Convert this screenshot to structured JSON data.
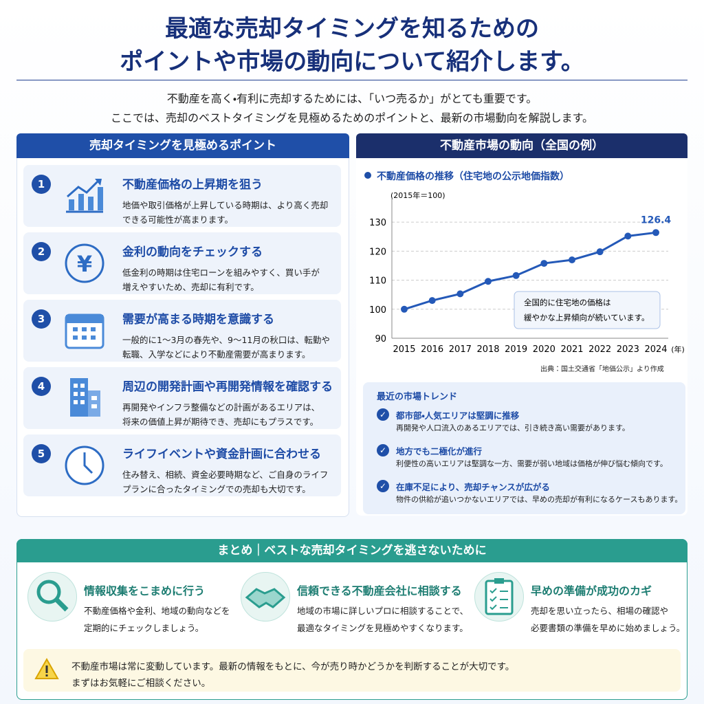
{
  "header": {
    "title": [
      "最適な売却タイミングを知るための",
      "ポイントや市場の動向について紹介します。"
    ],
    "intro": [
      "不動産を高く・有利に売却するためには、「いつ売るか」がとても重要です。",
      "ここでは、売却のベストタイミングを見極めるためのポイントと、最新の市場動向を解説します。"
    ]
  },
  "points": {
    "heading": "売却タイミングを見極めるポイント",
    "items": [
      {
        "number": "1",
        "title": "不動産価格の上昇期を狙う",
        "text": [
          "地価や取引価格が上昇している時期は、より高く売却",
          "できる可能性が高まります。"
        ]
      },
      {
        "number": "2",
        "title": "金利の動向をチェックする",
        "text": [
          "低金利の時期は住宅ローンを組みやすく、買い手が",
          "増えやすいため、売却に有利です。"
        ]
      },
      {
        "number": "3",
        "title": "需要が高まる時期を意識する",
        "text": [
          "一般的に1〜3月の春先や、9〜11月の秋口は、転勤や",
          "転職、入学などにより不動産需要が高まります。"
        ]
      },
      {
        "number": "4",
        "title": "周辺の開発計画や再開発情報を確認する",
        "text": [
          "再開発やインフラ整備などの計画があるエリアは、",
          "将来の価値上昇が期待でき、売却にもプラスです。"
        ]
      },
      {
        "number": "5",
        "title": "ライフイベントや資金計画に合わせる",
        "text": [
          "住み替え、相続、資金必要時期など、ご自身のライフ",
          "プランに合ったタイミングでの売却も大切です。"
        ]
      }
    ]
  },
  "market": {
    "heading": "不動産市場の動向（全国の例）",
    "source": "出典：国土交通省「地価公示」より作成",
    "trends": {
      "title": "最近の市場トレンド",
      "items": [
        {
          "title": "都市部・人気エリアは堅調に推移",
          "text": "再開発や人口流入のあるエリアでは、引き続き高い需要があります。"
        },
        {
          "title": "地方でも二極化が進行",
          "text": "利便性の高いエリアは堅調な一方、需要が弱い地域は価格が伸び悩む傾向です。"
        },
        {
          "title": "在庫不足により、売却チャンスが広がる",
          "text": "物件の供給が追いつかないエリアでは、早めの売却が有利になるケースもあります。"
        }
      ]
    }
  },
  "chart_data": {
    "type": "line",
    "title": "不動産価格の推移（住宅地の公示地価指数）",
    "y_label": "(2015年＝100)",
    "x_label": "(年)",
    "categories": [
      "2015",
      "2016",
      "2017",
      "2018",
      "2019",
      "2020",
      "2021",
      "2022",
      "2023",
      "2024"
    ],
    "series": [
      {
        "name": "公示地価指数",
        "color": "#2459b8",
        "values": [
          100,
          103,
          105.3,
          109.6,
          111.6,
          115.8,
          117,
          119.8,
          125.2,
          126.4
        ]
      }
    ],
    "ylim": [
      90,
      135
    ],
    "yticks": [
      90,
      100,
      110,
      120,
      130
    ],
    "grid": true,
    "annotation": [
      "全国的に住宅地の価格は",
      "緩やかな上昇傾向が続いています。"
    ]
  },
  "summary": {
    "heading": "まとめ｜ベストな売却タイミングを逃さないために",
    "items": [
      {
        "title": "情報収集をこまめに行う",
        "text": [
          "不動産価格や金利、地域の動向などを",
          "定期的にチェックしましょう。"
        ]
      },
      {
        "title": "信頼できる不動産会社に相談する",
        "text": [
          "地域の市場に詳しいプロに相談することで、",
          "最適なタイミングを見極めやすくなります。"
        ]
      },
      {
        "title": "早めの準備が成功のカギ",
        "text": [
          "売却を思い立ったら、相場の確認や",
          "必要書類の準備を早めに始めましょう。"
        ]
      }
    ],
    "note": [
      "不動産市場は常に変動しています。最新の情報をもとに、今が売り時かどうかを判断することが大切です。",
      "まずはお気軽にご相談ください。"
    ]
  }
}
